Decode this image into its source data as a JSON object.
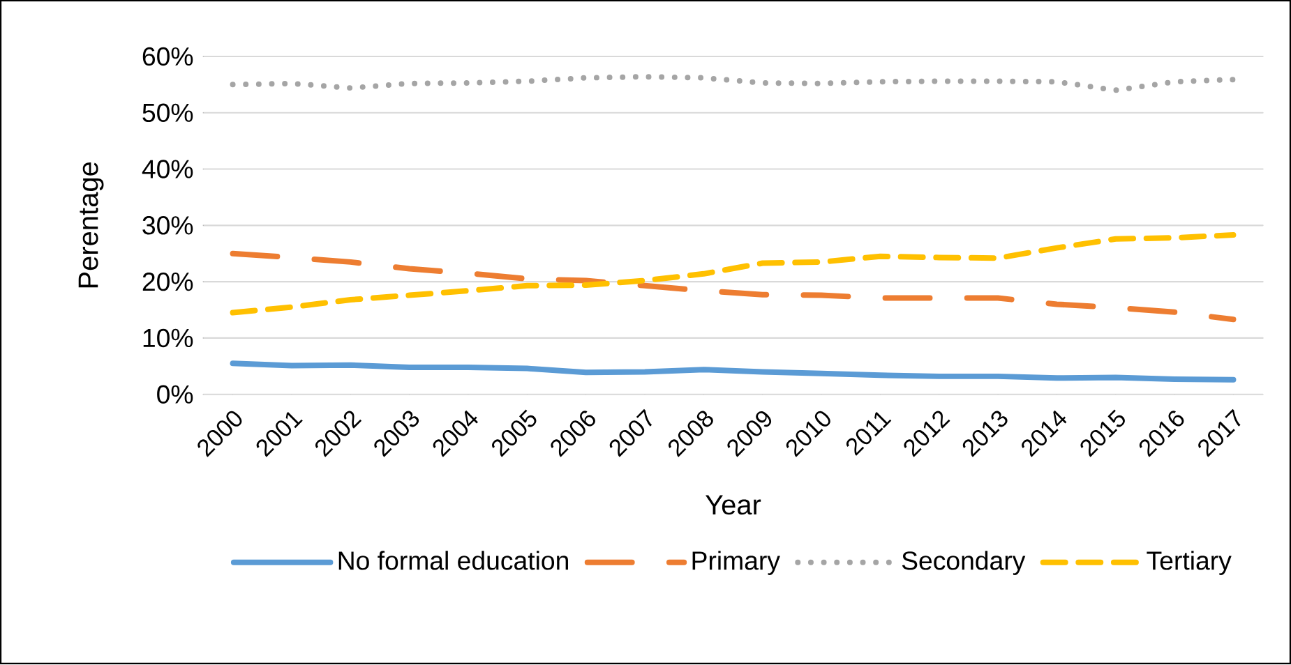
{
  "chart_data": {
    "type": "line",
    "xlabel": "Year",
    "ylabel": "Perentage",
    "categories": [
      "2000",
      "2001",
      "2002",
      "2003",
      "2004",
      "2005",
      "2006",
      "2007",
      "2008",
      "2009",
      "2010",
      "2011",
      "2012",
      "2013",
      "2014",
      "2015",
      "2016",
      "2017"
    ],
    "series": [
      {
        "name": "No formal education",
        "color": "#5b9bd5",
        "line_style": "solid",
        "values": [
          5.5,
          5.1,
          5.2,
          4.8,
          4.8,
          4.6,
          3.9,
          4.0,
          4.4,
          4.0,
          3.7,
          3.4,
          3.2,
          3.2,
          2.9,
          3.0,
          2.7,
          2.6
        ]
      },
      {
        "name": "Primary",
        "color": "#ed7d31",
        "line_style": "dashdot",
        "values": [
          25.0,
          24.3,
          23.5,
          22.3,
          21.5,
          20.5,
          20.2,
          19.3,
          18.4,
          17.7,
          17.6,
          17.1,
          17.1,
          17.1,
          16.0,
          15.4,
          14.6,
          13.3
        ]
      },
      {
        "name": "Secondary",
        "color": "#a5a5a5",
        "line_style": "dotted",
        "values": [
          55.0,
          55.2,
          54.4,
          55.2,
          55.3,
          55.6,
          56.2,
          56.4,
          56.2,
          55.3,
          55.2,
          55.5,
          55.6,
          55.6,
          55.5,
          54.0,
          55.5,
          55.9
        ]
      },
      {
        "name": "Tertiary",
        "color": "#ffc000",
        "line_style": "dashed",
        "values": [
          14.5,
          15.5,
          16.8,
          17.6,
          18.4,
          19.3,
          19.4,
          20.2,
          21.4,
          23.3,
          23.5,
          24.5,
          24.3,
          24.2,
          26.0,
          27.6,
          27.8,
          28.3
        ]
      }
    ],
    "ylim": [
      0,
      60
    ],
    "yticks": [
      {
        "value": 0,
        "label": "0%"
      },
      {
        "value": 10,
        "label": "10%"
      },
      {
        "value": 20,
        "label": "20%"
      },
      {
        "value": 30,
        "label": "30%"
      },
      {
        "value": 40,
        "label": "40%"
      },
      {
        "value": 50,
        "label": "50%"
      },
      {
        "value": 60,
        "label": "60%"
      }
    ],
    "grid": "y",
    "legend": "bottom"
  }
}
